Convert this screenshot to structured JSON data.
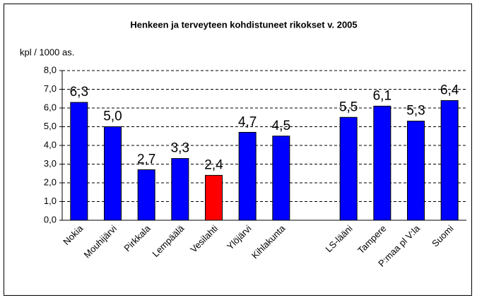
{
  "chart_data": {
    "type": "bar",
    "title": "Henkeen ja terveyteen kohdistuneet rikokset  v. 2005",
    "y_label": "kpl / 1000 as.",
    "categories": [
      "Nokia",
      "Mouhijärvi",
      "Pirkkala",
      "Lempäälä",
      "Vesilahti",
      "Ylöjärvi",
      "Kihlakunta",
      null,
      "LS-lääni",
      "Tampere",
      "P:maa pl V:la",
      "Suomi"
    ],
    "values": [
      6.3,
      5.0,
      2.7,
      3.3,
      2.4,
      4.7,
      4.5,
      null,
      5.5,
      6.1,
      5.3,
      6.4
    ],
    "value_labels": [
      "6,3",
      "5,0",
      "2,7",
      "3,3",
      "2,4",
      "4,7",
      "4,5",
      null,
      "5,5",
      "6,1",
      "5,3",
      "6,4"
    ],
    "colors": [
      "#0000ff",
      "#0000ff",
      "#0000ff",
      "#0000ff",
      "#ff0000",
      "#0000ff",
      "#0000ff",
      null,
      "#0000ff",
      "#0000ff",
      "#0000ff",
      "#0000ff"
    ],
    "ylim": [
      0,
      8
    ],
    "yticks": [
      {
        "value": 0,
        "label": "0,0"
      },
      {
        "value": 1,
        "label": "1,0"
      },
      {
        "value": 2,
        "label": "2,0"
      },
      {
        "value": 3,
        "label": "3,0"
      },
      {
        "value": 4,
        "label": "4,0"
      },
      {
        "value": 5,
        "label": "5,0"
      },
      {
        "value": 6,
        "label": "6,0"
      },
      {
        "value": 7,
        "label": "7,0"
      },
      {
        "value": 8,
        "label": "8,0"
      }
    ],
    "grid": true
  }
}
